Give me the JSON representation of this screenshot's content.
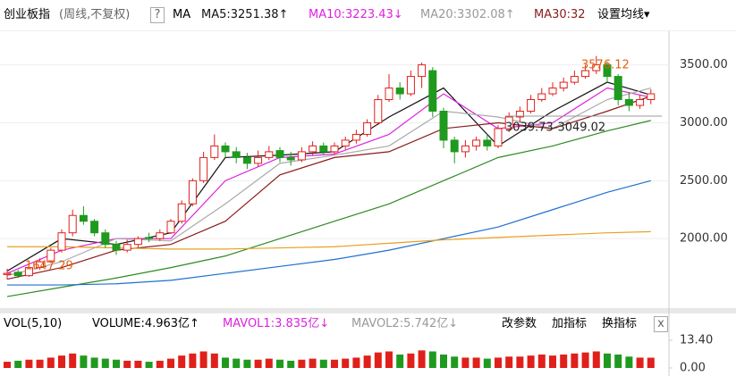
{
  "header": {
    "title": "创业板指",
    "period": "(周线,不复权)",
    "help": "?",
    "ma_label": "MA",
    "ma5": "MA5:3251.38↑",
    "ma10": "MA10:3223.43↓",
    "ma20": "MA20:3302.08↑",
    "ma30": "MA30:32",
    "settings": "设置均线▾"
  },
  "volume_header": {
    "name": "VOL(5,10)",
    "volume": "VOLUME:4.963亿↑",
    "mavol1": "MAVOL1:3.835亿↓",
    "mavol2": "MAVOL2:5.742亿↓",
    "buttons": [
      "改参数",
      "加指标",
      "换指标"
    ],
    "close": "x"
  },
  "chart_data": [
    {
      "type": "candlestick",
      "up_color": "#e0201b",
      "down_color": "#1f9a1f",
      "ohlc": [
        [
          1690,
          1700,
          1740,
          1647.29
        ],
        [
          1710,
          1680,
          1730,
          1660
        ],
        [
          1680,
          1750,
          1770,
          1670
        ],
        [
          1750,
          1800,
          1830,
          1730
        ],
        [
          1800,
          1900,
          1920,
          1790
        ],
        [
          1900,
          2050,
          2080,
          1880
        ],
        [
          2050,
          2200,
          2250,
          2020
        ],
        [
          2200,
          2150,
          2280,
          2120
        ],
        [
          2150,
          2050,
          2170,
          2020
        ],
        [
          2050,
          1950,
          2080,
          1920
        ],
        [
          1950,
          1900,
          1980,
          1860
        ],
        [
          1900,
          1950,
          1990,
          1880
        ],
        [
          1950,
          2000,
          2020,
          1920
        ],
        [
          2010,
          2000,
          2050,
          1970
        ],
        [
          2000,
          2050,
          2080,
          1980
        ],
        [
          2050,
          2150,
          2170,
          2040
        ],
        [
          2150,
          2300,
          2330,
          2130
        ],
        [
          2300,
          2500,
          2520,
          2280
        ],
        [
          2500,
          2700,
          2750,
          2480
        ],
        [
          2700,
          2800,
          2900,
          2680
        ],
        [
          2800,
          2750,
          2830,
          2700
        ],
        [
          2750,
          2700,
          2790,
          2650
        ],
        [
          2700,
          2650,
          2740,
          2600
        ],
        [
          2650,
          2700,
          2760,
          2620
        ],
        [
          2700,
          2750,
          2800,
          2680
        ],
        [
          2760,
          2700,
          2790,
          2660
        ],
        [
          2700,
          2680,
          2750,
          2630
        ],
        [
          2680,
          2750,
          2790,
          2660
        ],
        [
          2750,
          2800,
          2840,
          2720
        ],
        [
          2800,
          2750,
          2830,
          2720
        ],
        [
          2750,
          2800,
          2830,
          2730
        ],
        [
          2800,
          2850,
          2880,
          2770
        ],
        [
          2850,
          2900,
          2940,
          2820
        ],
        [
          2900,
          3000,
          3030,
          2880
        ],
        [
          3000,
          3200,
          3240,
          2980
        ],
        [
          3200,
          3300,
          3420,
          3180
        ],
        [
          3300,
          3250,
          3350,
          3200
        ],
        [
          3250,
          3400,
          3450,
          3230
        ],
        [
          3400,
          3500,
          3520,
          3300
        ],
        [
          3450,
          3100,
          3480,
          3050
        ],
        [
          3100,
          2850,
          3130,
          2780
        ],
        [
          2850,
          2750,
          2880,
          2650
        ],
        [
          2750,
          2800,
          2850,
          2700
        ],
        [
          2800,
          2850,
          2880,
          2760
        ],
        [
          2850,
          2800,
          2900,
          2760
        ],
        [
          2800,
          2950,
          2980,
          2780
        ],
        [
          2950,
          3050,
          3090,
          2920
        ],
        [
          3050,
          3100,
          3140,
          3000
        ],
        [
          3100,
          3200,
          3240,
          3080
        ],
        [
          3200,
          3250,
          3300,
          3180
        ],
        [
          3250,
          3300,
          3350,
          3230
        ],
        [
          3300,
          3350,
          3390,
          3270
        ],
        [
          3350,
          3400,
          3450,
          3330
        ],
        [
          3400,
          3450,
          3500,
          3380
        ],
        [
          3450,
          3500,
          3576.12,
          3420
        ],
        [
          3500,
          3400,
          3530,
          3350
        ],
        [
          3400,
          3200,
          3420,
          3150
        ],
        [
          3200,
          3150,
          3260,
          3100
        ],
        [
          3150,
          3200,
          3240,
          3120
        ],
        [
          3200,
          3250,
          3290,
          3160
        ]
      ],
      "lines": {
        "x": [
          0,
          5,
          10,
          15,
          20,
          25,
          30,
          35,
          40,
          45,
          50,
          55,
          59
        ],
        "series": [
          {
            "color": "#111111",
            "values": [
              1720,
              2000,
              1950,
              2050,
              2700,
              2720,
              2750,
              3050,
              3300,
              2800,
              3100,
              3350,
              3240
            ]
          },
          {
            "color": "#dd22dd",
            "values": [
              1700,
              1900,
              2000,
              2000,
              2500,
              2700,
              2730,
              2900,
              3250,
              2950,
              3000,
              3300,
              3220
            ]
          },
          {
            "color": "#aaaaaa",
            "values": [
              1680,
              1800,
              2000,
              1980,
              2300,
              2650,
              2720,
              2800,
              3100,
              3050,
              2950,
              3200,
              3300
            ]
          },
          {
            "color": "#8b1a1a",
            "values": [
              1650,
              1750,
              1900,
              1950,
              2150,
              2550,
              2700,
              2750,
              2950,
              3000,
              2950,
              3100,
              3230
            ]
          },
          {
            "color": "#2e8b22",
            "values": [
              1500,
              1580,
              1660,
              1750,
              1850,
              2000,
              2150,
              2300,
              2500,
              2700,
              2800,
              2930,
              3020
            ]
          },
          {
            "color": "#1f6fd0",
            "values": [
              1600,
              1600,
              1610,
              1640,
              1700,
              1760,
              1820,
              1900,
              2000,
              2100,
              2250,
              2400,
              2500
            ]
          },
          {
            "color": "#e8a020",
            "values": [
              1930,
              1930,
              1920,
              1910,
              1910,
              1920,
              1930,
              1960,
              1990,
              2010,
              2030,
              2050,
              2060
            ]
          }
        ]
      },
      "ylim": [
        1400,
        3790
      ],
      "yticks": [
        {
          "value": 2000,
          "label": "2000.00"
        },
        {
          "value": 2500,
          "label": "2500.00"
        },
        {
          "value": 3000,
          "label": "3000.00"
        },
        {
          "value": 3500,
          "label": "3500.00"
        }
      ],
      "annotations": [
        "3576.12",
        "1647.29",
        "3039.73-3049.02"
      ]
    },
    {
      "type": "volume",
      "values": [
        3,
        3.5,
        4,
        4,
        5,
        6,
        7,
        6,
        5,
        4.5,
        4,
        3.5,
        3.5,
        3,
        3.5,
        4.5,
        6,
        7,
        8,
        7,
        5,
        4.5,
        4,
        4,
        4.5,
        4,
        3.5,
        4,
        4.5,
        4,
        4,
        4.5,
        5,
        6,
        7.5,
        8,
        6.5,
        7,
        8.5,
        8,
        6.5,
        5.5,
        5,
        5,
        4.5,
        5,
        5.5,
        5.5,
        6,
        6.5,
        6,
        6.5,
        7,
        7.5,
        8,
        7,
        6.5,
        5.5,
        5,
        4.963
      ],
      "ylim": [
        0,
        13.4
      ],
      "yticks": [
        {
          "value": 0,
          "label": "0.00"
        },
        {
          "value": 13.4,
          "label": "13.40"
        }
      ]
    }
  ]
}
